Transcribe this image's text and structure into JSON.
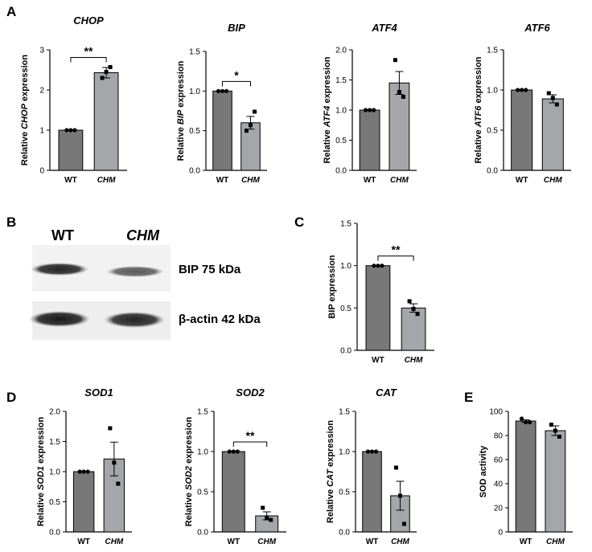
{
  "panels": {
    "A": "A",
    "B": "B",
    "C": "C",
    "D": "D",
    "E": "E"
  },
  "blot": {
    "lane_labels": [
      "WT",
      "CHM"
    ],
    "bands": [
      {
        "label": "BIP 75 kDa",
        "wt_intensity": 0.95,
        "chm_intensity": 0.7
      },
      {
        "label": "β-actin 42 kDa",
        "wt_intensity": 1.0,
        "chm_intensity": 0.95
      }
    ]
  },
  "chart_data": [
    {
      "id": "chop",
      "panel": "A",
      "type": "bar",
      "title": "CHOP",
      "title_italic": true,
      "ylabel_parts": [
        "Relative ",
        "CHOP",
        " expression"
      ],
      "categories": [
        "WT",
        "CHM"
      ],
      "values": [
        1.0,
        2.43
      ],
      "sem": [
        0.0,
        0.13
      ],
      "points": [
        [
          1.0,
          1.0,
          1.0
        ],
        [
          2.3,
          2.45,
          2.57
        ]
      ],
      "ylim": [
        0,
        3
      ],
      "yticks": [
        "0",
        "1",
        "2",
        "3"
      ],
      "significance": "**"
    },
    {
      "id": "bip",
      "panel": "A",
      "type": "bar",
      "title": "BIP",
      "title_italic": true,
      "ylabel_parts": [
        "Relative ",
        "BIP",
        " expression"
      ],
      "categories": [
        "WT",
        "CHM"
      ],
      "values": [
        1.0,
        0.6
      ],
      "sem": [
        0.0,
        0.08
      ],
      "points": [
        [
          1.0,
          1.0,
          1.0
        ],
        [
          0.5,
          0.57,
          0.74
        ]
      ],
      "ylim": [
        0,
        1.5
      ],
      "yticks": [
        "0.0",
        "0.5",
        "1.0",
        "1.5"
      ],
      "significance": "*"
    },
    {
      "id": "atf4",
      "panel": "A",
      "type": "bar",
      "title": "ATF4",
      "title_italic": true,
      "ylabel_parts": [
        "Relative ",
        "ATF4",
        " expression"
      ],
      "categories": [
        "WT",
        "CHM"
      ],
      "values": [
        1.0,
        1.45
      ],
      "sem": [
        0.0,
        0.19
      ],
      "points": [
        [
          1.0,
          1.0,
          1.0
        ],
        [
          1.83,
          1.3,
          1.22
        ]
      ],
      "ylim": [
        0,
        2.0
      ],
      "yticks": [
        "0.0",
        "0.5",
        "1.0",
        "1.5",
        "2.0"
      ],
      "significance": ""
    },
    {
      "id": "atf6",
      "panel": "A",
      "type": "bar",
      "title": "ATF6",
      "title_italic": true,
      "ylabel_parts": [
        "Relative ",
        "ATF6",
        " expression"
      ],
      "categories": [
        "WT",
        "CHM"
      ],
      "values": [
        1.0,
        0.89
      ],
      "sem": [
        0.0,
        0.05
      ],
      "points": [
        [
          1.0,
          1.0,
          1.0
        ],
        [
          0.96,
          0.9,
          0.82
        ]
      ],
      "ylim": [
        0,
        1.5
      ],
      "yticks": [
        "0.0",
        "0.5",
        "1.0",
        "1.5"
      ],
      "significance": ""
    },
    {
      "id": "bip_blot",
      "panel": "C",
      "type": "bar",
      "title": "",
      "title_italic": false,
      "ylabel_parts": [
        "BIP expression"
      ],
      "categories": [
        "WT",
        "CHM"
      ],
      "values": [
        1.0,
        0.5
      ],
      "sem": [
        0.0,
        0.05
      ],
      "points": [
        [
          1.0,
          1.0,
          1.0
        ],
        [
          0.58,
          0.49,
          0.43
        ]
      ],
      "ylim": [
        0,
        1.5
      ],
      "yticks": [
        "0.0",
        "0.5",
        "1.0",
        "1.5"
      ],
      "significance": "**"
    },
    {
      "id": "sod1",
      "panel": "D",
      "type": "bar",
      "title": "SOD1",
      "title_italic": true,
      "ylabel_parts": [
        "Relative ",
        "SOD1",
        " expression"
      ],
      "categories": [
        "WT",
        "CHM"
      ],
      "values": [
        1.0,
        1.21
      ],
      "sem": [
        0.0,
        0.28
      ],
      "points": [
        [
          1.0,
          1.0,
          1.0
        ],
        [
          1.72,
          1.15,
          0.8
        ]
      ],
      "ylim": [
        0,
        2.0
      ],
      "yticks": [
        "0.0",
        "0.5",
        "1.0",
        "1.5",
        "2.0"
      ],
      "significance": ""
    },
    {
      "id": "sod2",
      "panel": "D",
      "type": "bar",
      "title": "SOD2",
      "title_italic": true,
      "ylabel_parts": [
        "Relative ",
        "SOD2",
        " expression"
      ],
      "categories": [
        "WT",
        "CHM"
      ],
      "values": [
        1.0,
        0.2
      ],
      "sem": [
        0.0,
        0.05
      ],
      "points": [
        [
          1.0,
          1.0,
          1.0
        ],
        [
          0.3,
          0.17,
          0.15
        ]
      ],
      "ylim": [
        0,
        1.5
      ],
      "yticks": [
        "0.0",
        "0.5",
        "1.0",
        "1.5"
      ],
      "significance": "**"
    },
    {
      "id": "cat",
      "panel": "D",
      "type": "bar",
      "title": "CAT",
      "title_italic": true,
      "ylabel_parts": [
        "Relative ",
        "CAT",
        " expression"
      ],
      "categories": [
        "WT",
        "CHM"
      ],
      "values": [
        1.0,
        0.45
      ],
      "sem": [
        0.0,
        0.18
      ],
      "points": [
        [
          1.0,
          1.0,
          1.0
        ],
        [
          0.8,
          0.45,
          0.1
        ]
      ],
      "ylim": [
        0,
        1.5
      ],
      "yticks": [
        "0.0",
        "0.5",
        "1.0",
        "1.5"
      ],
      "significance": ""
    },
    {
      "id": "sod_activity",
      "panel": "E",
      "type": "bar",
      "title": "",
      "title_italic": false,
      "ylabel_parts": [
        "SOD activity"
      ],
      "categories": [
        "WT",
        "CHM"
      ],
      "values": [
        92,
        84
      ],
      "sem": [
        1,
        4
      ],
      "points": [
        [
          94,
          91,
          91
        ],
        [
          89,
          84,
          79
        ]
      ],
      "ylim": [
        0,
        100
      ],
      "yticks": [
        "0",
        "20",
        "40",
        "60",
        "80",
        "100"
      ],
      "significance": ""
    }
  ],
  "colors": {
    "wt_bar": "#787878",
    "chm_bar": "#a4a6aa",
    "axis": "#000000",
    "marker": "#000000"
  }
}
